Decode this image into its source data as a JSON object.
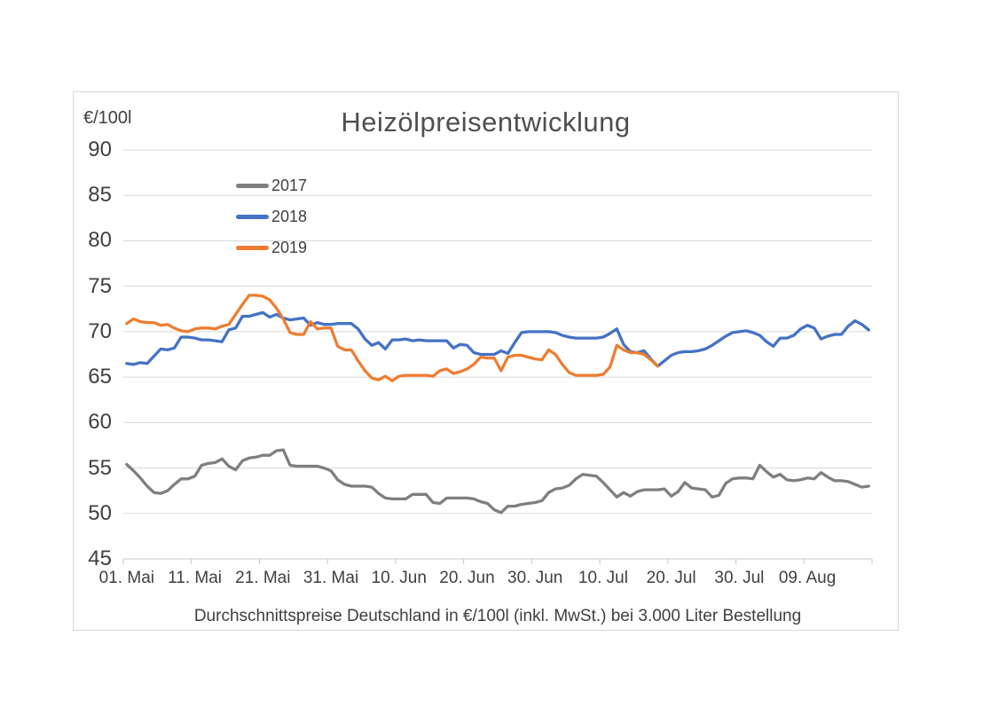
{
  "accent_colors": {
    "grid": "#d9d9d9",
    "axis": "#c8c8c8",
    "text": "#404040",
    "title_text": "#4f4f4f"
  },
  "chart_data": {
    "type": "line",
    "title": "Heizölpreisentwicklung",
    "ylabel": "€/100l",
    "caption": "Durchschnittspreise Deutschland in €/100l (inkl. MwSt.) bei 3.000 Liter Bestellung",
    "ylim": [
      45,
      90
    ],
    "yticks": [
      90,
      85,
      80,
      75,
      70,
      65,
      60,
      55,
      50,
      45
    ],
    "x_unit": "daily values, days since 01. Mai",
    "xticklabels": [
      "01. Mai",
      "11. Mai",
      "21. Mai",
      "31. Mai",
      "10. Jun",
      "20. Jun",
      "30. Jun",
      "10. Jul",
      "20. Jul",
      "30. Jul",
      "09. Aug"
    ],
    "grid": "horizontal",
    "legend_position": "upper-left-inside",
    "series": [
      {
        "name": "2017",
        "color": "#7f7f7f",
        "values": [
          55.4,
          54.7,
          53.9,
          53.0,
          52.3,
          52.2,
          52.5,
          53.2,
          53.8,
          53.8,
          54.1,
          55.3,
          55.5,
          55.6,
          56.0,
          55.2,
          54.8,
          55.8,
          56.1,
          56.2,
          56.4,
          56.4,
          56.9,
          57.0,
          55.3,
          55.2,
          55.2,
          55.2,
          55.2,
          55.0,
          54.7,
          53.7,
          53.2,
          53.0,
          53.0,
          53.0,
          52.9,
          52.2,
          51.7,
          51.6,
          51.6,
          51.6,
          52.1,
          52.1,
          52.1,
          51.2,
          51.1,
          51.7,
          51.7,
          51.7,
          51.7,
          51.6,
          51.3,
          51.1,
          50.4,
          50.1,
          50.8,
          50.8,
          51.0,
          51.1,
          51.2,
          51.4,
          52.3,
          52.7,
          52.8,
          53.1,
          53.8,
          54.3,
          54.2,
          54.1,
          53.4,
          52.6,
          51.8,
          52.3,
          51.9,
          52.4,
          52.6,
          52.6,
          52.6,
          52.7,
          51.9,
          52.4,
          53.4,
          52.8,
          52.7,
          52.6,
          51.8,
          52.0,
          53.3,
          53.8,
          53.9,
          53.9,
          53.8,
          55.3,
          54.6,
          54.0,
          54.3,
          53.7,
          53.6,
          53.7,
          53.9,
          53.8,
          54.5,
          54.0,
          53.6,
          53.6,
          53.5,
          53.2,
          52.9,
          53.0
        ]
      },
      {
        "name": "2018",
        "color": "#4472c4",
        "values": [
          66.5,
          66.4,
          66.6,
          66.5,
          67.3,
          68.1,
          68.0,
          68.2,
          69.4,
          69.4,
          69.3,
          69.1,
          69.1,
          69.0,
          68.9,
          70.2,
          70.4,
          71.7,
          71.7,
          71.9,
          72.1,
          71.6,
          71.9,
          71.5,
          71.3,
          71.4,
          71.5,
          70.7,
          71.0,
          70.8,
          70.8,
          70.9,
          70.9,
          70.9,
          70.3,
          69.2,
          68.5,
          68.8,
          68.1,
          69.1,
          69.1,
          69.2,
          69.0,
          69.1,
          69.0,
          69.0,
          69.0,
          69.0,
          68.2,
          68.6,
          68.5,
          67.7,
          67.5,
          67.5,
          67.5,
          67.9,
          67.6,
          68.8,
          69.9,
          70.0,
          70.0,
          70.0,
          70.0,
          69.9,
          69.6,
          69.4,
          69.3,
          69.3,
          69.3,
          69.3,
          69.4,
          69.8,
          70.3,
          68.6,
          67.8,
          67.7,
          67.9,
          67.0,
          66.2,
          66.8,
          67.4,
          67.7,
          67.8,
          67.8,
          67.9,
          68.1,
          68.5,
          69.0,
          69.5,
          69.9,
          70.0,
          70.1,
          69.9,
          69.6,
          68.9,
          68.4,
          69.3,
          69.3,
          69.6,
          70.3,
          70.7,
          70.4,
          69.2,
          69.5,
          69.7,
          69.7,
          70.6,
          71.2,
          70.8,
          70.2
        ]
      },
      {
        "name": "2019",
        "color": "#ed7d31",
        "values": [
          70.9,
          71.4,
          71.1,
          71.0,
          71.0,
          70.7,
          70.8,
          70.4,
          70.1,
          70.0,
          70.3,
          70.4,
          70.4,
          70.3,
          70.6,
          70.8,
          71.9,
          73.0,
          74.0,
          74.0,
          73.9,
          73.5,
          72.6,
          71.4,
          69.9,
          69.7,
          69.7,
          71.1,
          70.3,
          70.4,
          70.4,
          68.4,
          68.0,
          68.0,
          66.8,
          65.7,
          64.9,
          64.7,
          65.1,
          64.6,
          65.1,
          65.2,
          65.2,
          65.2,
          65.2,
          65.1,
          65.7,
          65.9,
          65.4,
          65.6,
          65.9,
          66.4,
          67.2,
          67.1,
          67.1,
          65.7,
          67.2,
          67.4,
          67.4,
          67.2,
          67.0,
          66.9,
          68.0,
          67.5,
          66.4,
          65.5,
          65.2,
          65.2,
          65.2,
          65.2,
          65.3,
          66.1,
          68.5,
          68.0,
          67.7,
          67.7,
          67.5,
          66.9,
          66.2
        ]
      }
    ]
  }
}
